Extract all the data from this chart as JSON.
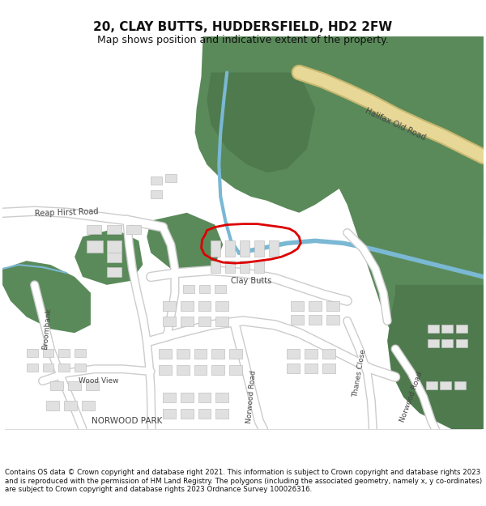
{
  "title": "20, CLAY BUTTS, HUDDERSFIELD, HD2 2FW",
  "subtitle": "Map shows position and indicative extent of the property.",
  "footer": "Contains OS data © Crown copyright and database right 2021. This information is subject to Crown copyright and database rights 2023 and is reproduced with the permission of HM Land Registry. The polygons (including the associated geometry, namely x, y co-ordinates) are subject to Crown copyright and database rights 2023 Ordnance Survey 100026316.",
  "bg_color": "#ffffff",
  "map_bg": "#f8f8f8",
  "green_color": "#5a8a5a",
  "green2_color": "#4e7a4e",
  "water_color": "#7ab8d4",
  "building_color": "#e0e0e0",
  "building_edge": "#c0c0c0",
  "road_text_color": "#444444",
  "red_outline": "#dd0000",
  "halifax_road_outer": "#c8b870",
  "halifax_road_inner": "#e8d898"
}
